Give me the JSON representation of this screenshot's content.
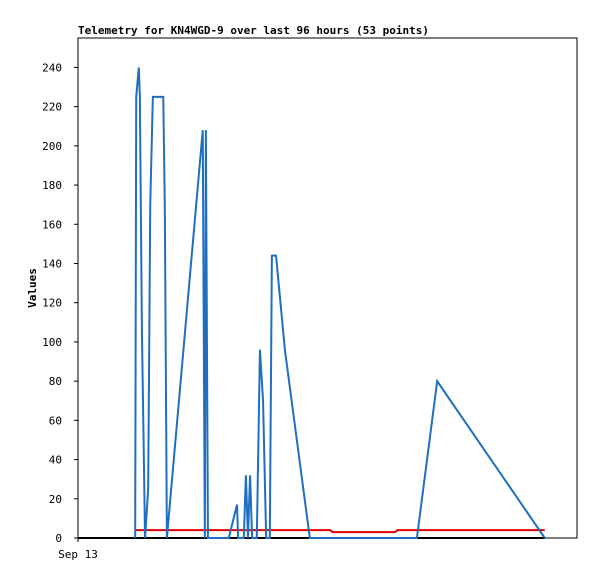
{
  "chart_data": {
    "type": "line",
    "title": "Telemetry for KN4WGD-9 over last 96 hours (53 points)",
    "y_label": "Values",
    "xlim": [
      0,
      96
    ],
    "xticks": [
      {
        "value": 0,
        "label": "Sep 13"
      }
    ],
    "ylim": [
      0,
      255
    ],
    "yticks": [
      0,
      20,
      40,
      60,
      80,
      100,
      120,
      140,
      160,
      180,
      200,
      220,
      240
    ],
    "grid": false,
    "series": [
      {
        "name": "black",
        "color": "#000000",
        "x": [
          0,
          89.8
        ],
        "values": [
          0,
          0
        ]
      },
      {
        "name": "red",
        "color": "#e00000",
        "x": [
          11,
          48.5,
          49,
          61,
          61.5,
          89.8
        ],
        "values": [
          4,
          4,
          3,
          3,
          4,
          4
        ]
      },
      {
        "name": "blue",
        "color": "#1f6fc0",
        "x": [
          11.0,
          11.2,
          11.7,
          11.9,
          12.3,
          12.9,
          13.5,
          13.9,
          14.4,
          15.4,
          16.4,
          16.7,
          17.1,
          24.0,
          24.4,
          24.6,
          25.0,
          29.0,
          30.6,
          30.8,
          31.9,
          32.3,
          32.7,
          33.1,
          33.5,
          34.4,
          35.0,
          35.6,
          36.2,
          36.9,
          37.3,
          38.1,
          39.8,
          44.6,
          65.2,
          69.1,
          89.8
        ],
        "values": [
          0,
          225,
          240,
          225,
          105,
          0,
          25,
          170,
          225,
          225,
          225,
          170,
          0,
          208,
          0,
          208,
          0,
          0,
          17,
          0,
          0,
          32,
          0,
          32,
          0,
          0,
          96,
          70,
          0,
          0,
          144,
          144,
          96,
          0,
          0,
          80,
          0
        ]
      }
    ]
  }
}
